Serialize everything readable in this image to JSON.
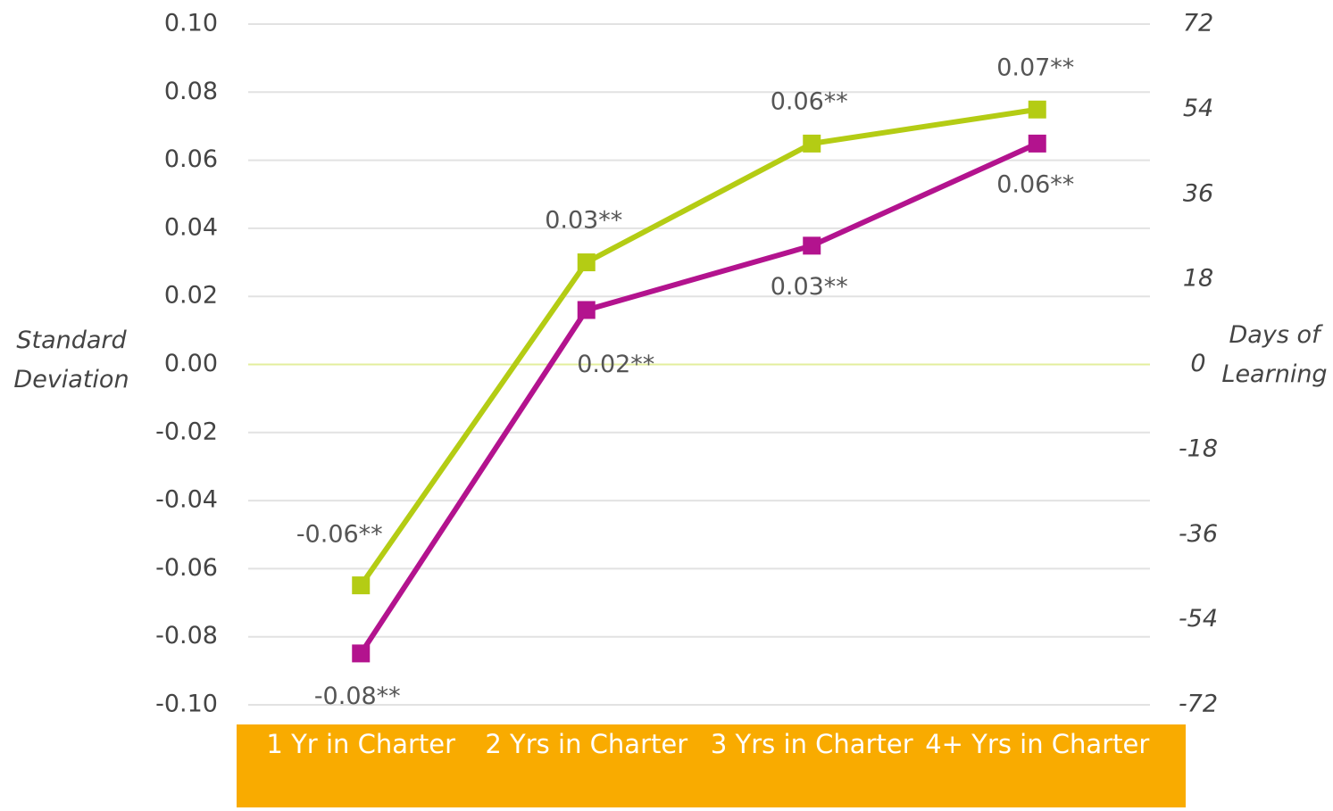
{
  "chart_data": {
    "type": "line",
    "categories": [
      "1 Yr in Charter",
      "2 Yrs in Charter",
      "3 Yrs in Charter",
      "4+ Yrs in Charter"
    ],
    "series": [
      {
        "color": "#b4cc14",
        "values": [
          -0.0649,
          0.03,
          0.0649,
          0.0749
        ],
        "value_labels": [
          "-0.06**",
          "0.03**",
          "0.06**",
          "0.07**"
        ]
      },
      {
        "color": "#b3138e",
        "values": [
          -0.0849,
          0.016,
          0.0349,
          0.0649
        ],
        "value_labels": [
          "-0.08**",
          "0.02**",
          "0.03**",
          "0.06**"
        ]
      }
    ],
    "ylabel": "Standard Deviation",
    "y2label": "Days of Learning",
    "ylim": [
      -0.1,
      0.1
    ],
    "yticks": [
      {
        "value": -0.1,
        "label": "-0.10"
      },
      -0.08,
      -0.06,
      -0.04,
      -0.02,
      {
        "value": 0,
        "label": "0.00"
      },
      0.02,
      0.04,
      0.06,
      0.08,
      {
        "value": 0.1,
        "label": "0.10"
      }
    ],
    "y2lim": [
      -72,
      72
    ],
    "y2ticks": [
      -72,
      -54,
      -36,
      -18,
      0,
      18,
      36,
      54,
      72
    ],
    "grid": true,
    "band_color": "#f9ab00"
  }
}
